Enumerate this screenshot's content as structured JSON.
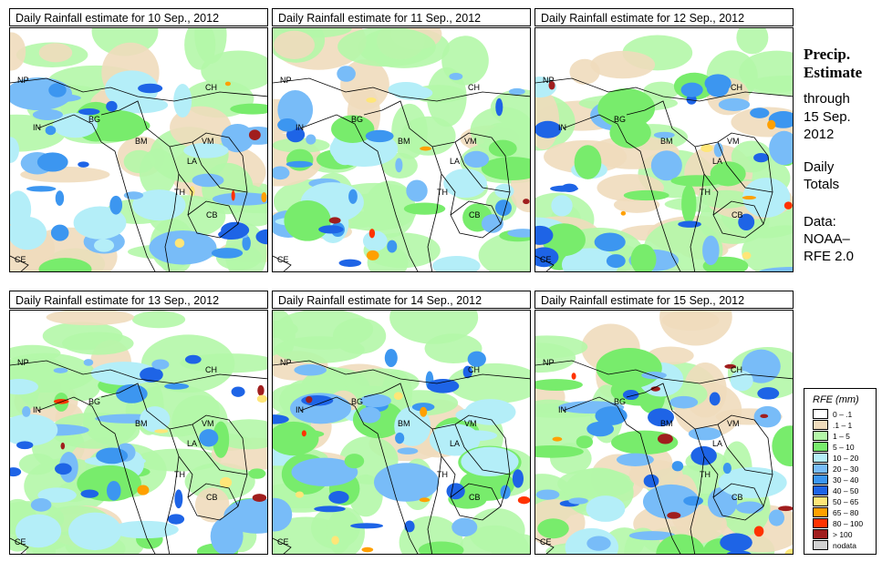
{
  "panels": [
    {
      "title": "Daily Rainfall estimate for  10 Sep., 2012",
      "seed": 3,
      "intensity": 1
    },
    {
      "title": "Daily Rainfall estimate for  11 Sep., 2012",
      "seed": 7,
      "intensity": 1.1
    },
    {
      "title": "Daily Rainfall estimate for  12 Sep., 2012",
      "seed": 11,
      "intensity": 1.3
    },
    {
      "title": "Daily Rainfall estimate for  13 Sep., 2012",
      "seed": 17,
      "intensity": 1.4
    },
    {
      "title": "Daily Rainfall estimate for  14 Sep., 2012",
      "seed": 23,
      "intensity": 1.5
    },
    {
      "title": "Daily Rainfall estimate for  15 Sep., 2012",
      "seed": 31,
      "intensity": 1.7
    }
  ],
  "map_labels": {
    "np": "NP",
    "ch": "CH",
    "bg": "BG",
    "in": "IN",
    "bm": "BM",
    "vm": "VM",
    "la": "LA",
    "th": "TH",
    "cb": "CB",
    "ce": "CE"
  },
  "side": {
    "title1": "Precip.",
    "title2": "Estimate",
    "through": "through",
    "date1": "15 Sep.",
    "date2": "2012",
    "daily": "Daily",
    "totals": "Totals",
    "data": "Data:",
    "source1": "NOAA–",
    "source2": "RFE 2.0"
  },
  "legend": {
    "title": "RFE (mm)",
    "items": [
      {
        "label": "0 – .1",
        "color": "#ffffff"
      },
      {
        "label": ".1 – 1",
        "color": "#f0dcbc"
      },
      {
        "label": "1 – 5",
        "color": "#b4f7a8"
      },
      {
        "label": "5 – 10",
        "color": "#78ec6c"
      },
      {
        "label": "10 – 20",
        "color": "#b4eef8"
      },
      {
        "label": "20 – 30",
        "color": "#78bcf8"
      },
      {
        "label": "30 – 40",
        "color": "#3c96f0"
      },
      {
        "label": "40 – 50",
        "color": "#1e64e6"
      },
      {
        "label": "50 – 65",
        "color": "#ffe678"
      },
      {
        "label": "65 – 80",
        "color": "#ffa000"
      },
      {
        "label": "80 – 100",
        "color": "#ff3200"
      },
      {
        "label": "> 100",
        "color": "#a01e1e"
      },
      {
        "label": "nodata",
        "color": "#d2d2d2"
      }
    ]
  }
}
